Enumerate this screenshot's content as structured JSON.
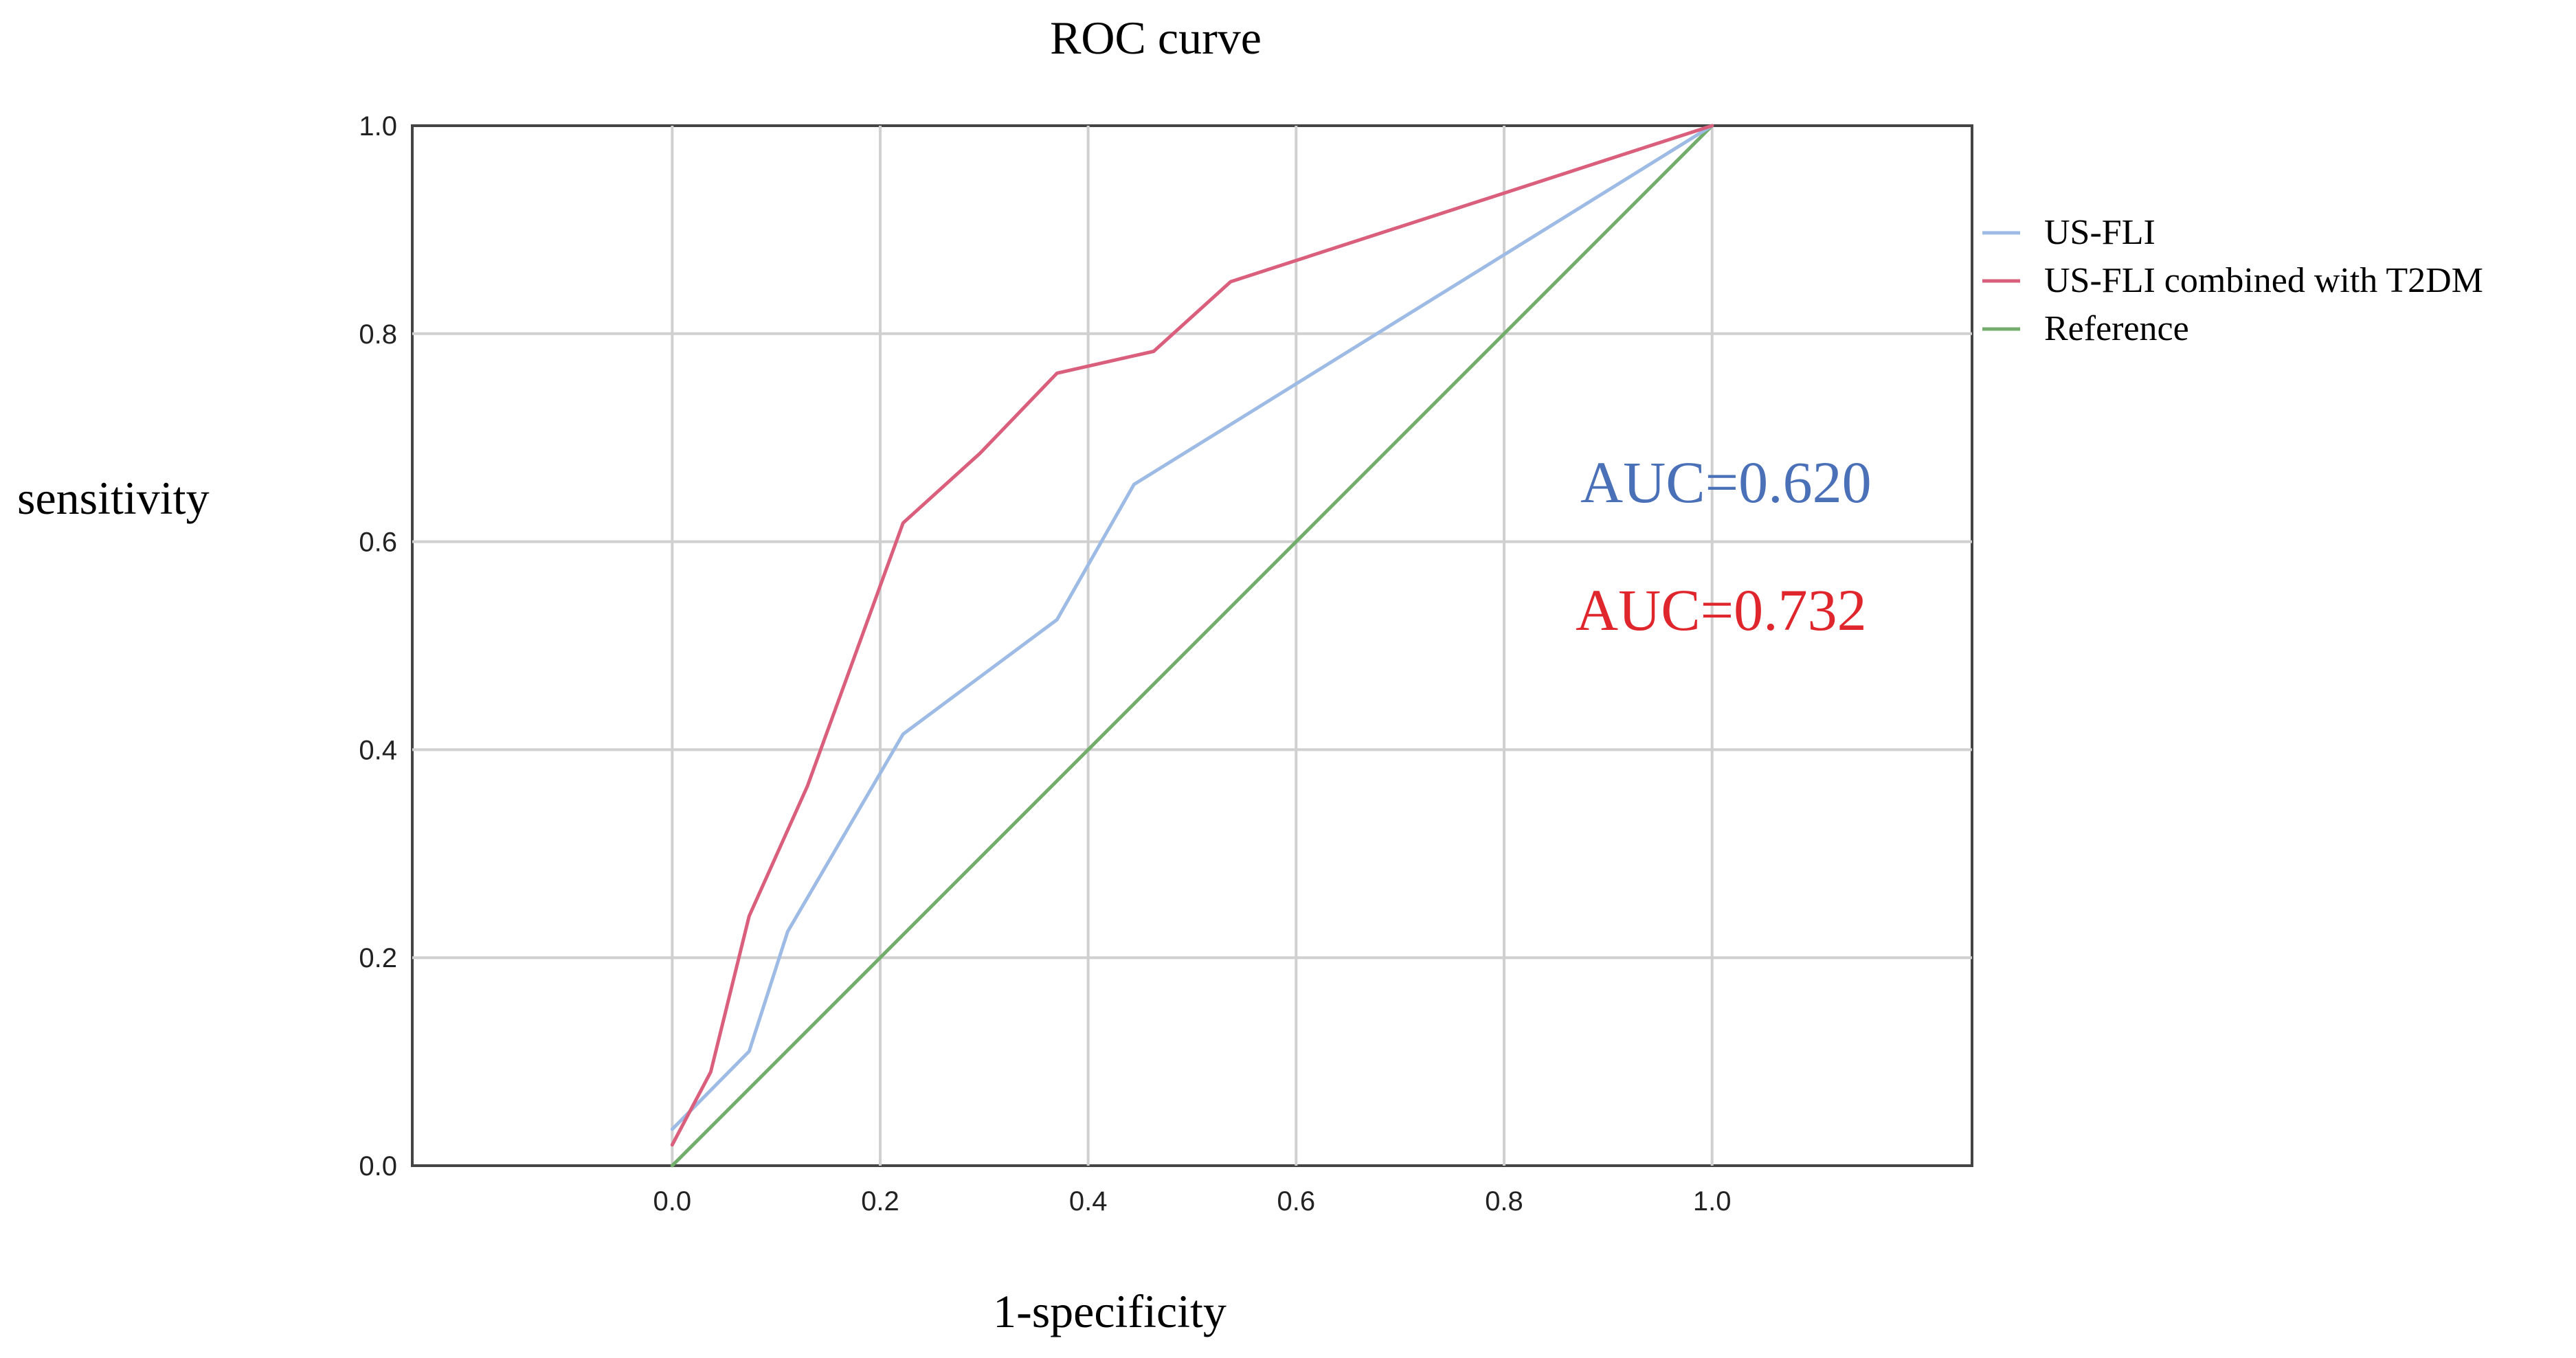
{
  "chart_data": {
    "type": "line",
    "title": "ROC curve",
    "xlabel": "1-specificity",
    "ylabel": "sensitivity",
    "xlim": [
      -0.25,
      1.25
    ],
    "ylim": [
      0,
      1
    ],
    "x_ticks": [
      0.0,
      0.2,
      0.4,
      0.6,
      0.8,
      1.0
    ],
    "y_ticks": [
      0.0,
      0.2,
      0.4,
      0.6,
      0.8,
      1.0
    ],
    "x_tick_labels": [
      "0.0",
      "0.2",
      "0.4",
      "0.6",
      "0.8",
      "1.0"
    ],
    "y_tick_labels": [
      "0.0",
      "0.2",
      "0.4",
      "0.6",
      "0.8",
      "1.0"
    ],
    "grid": true,
    "legend_position": "right",
    "series": [
      {
        "name": "US-FLI",
        "color": "#9dbbe4",
        "x": [
          0.0,
          0.074,
          0.111,
          0.222,
          0.37,
          0.444,
          1.0
        ],
        "y": [
          0.035,
          0.11,
          0.225,
          0.415,
          0.525,
          0.655,
          1.0
        ]
      },
      {
        "name": "US-FLI combined with T2DM",
        "color": "#d95f7d",
        "x": [
          0.0,
          0.037,
          0.074,
          0.13,
          0.222,
          0.296,
          0.37,
          0.463,
          0.537,
          1.0
        ],
        "y": [
          0.02,
          0.09,
          0.24,
          0.365,
          0.618,
          0.685,
          0.762,
          0.783,
          0.85,
          1.0
        ]
      },
      {
        "name": "Reference",
        "color": "#72ad6b",
        "x": [
          0.0,
          1.0
        ],
        "y": [
          0.0,
          1.0
        ]
      }
    ],
    "annotations": [
      {
        "text": "AUC=0.620",
        "color": "#4a70b8"
      },
      {
        "text": "AUC=0.732",
        "color": "#e0262d"
      }
    ]
  }
}
